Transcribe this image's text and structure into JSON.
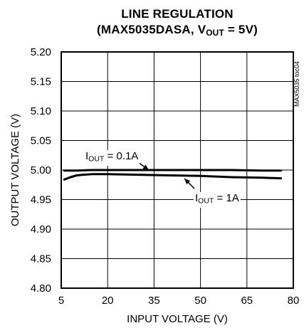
{
  "chart_data": {
    "type": "line",
    "title": "LINE REGULATION",
    "subtitle_parts": {
      "prefix": "(MAX5035DASA, V",
      "sub": "OUT",
      "suffix": " = 5V)"
    },
    "xlabel": "INPUT VOLTAGE (V)",
    "ylabel": "OUTPUT VOLTAGE (V)",
    "xlim": [
      5,
      80
    ],
    "ylim": [
      4.8,
      5.2
    ],
    "x_ticks": [
      "5",
      "20",
      "35",
      "50",
      "65",
      "80"
    ],
    "y_ticks": [
      "5.20",
      "5.15",
      "5.10",
      "5.05",
      "5.00",
      "4.95",
      "4.90",
      "4.85",
      "4.80"
    ],
    "grid": true,
    "side_label": "MAX5035 toc04",
    "series": [
      {
        "name": "IOUT = 0.1A",
        "label_parts": {
          "prefix": "I",
          "sub": "OUT",
          "suffix": " = 0.1A"
        },
        "x": [
          6,
          10,
          15,
          20,
          30,
          40,
          50,
          60,
          70,
          76
        ],
        "y": [
          4.999,
          4.999,
          5.0,
          5.0,
          5.0,
          5.0,
          5.0,
          5.0,
          4.999,
          4.999
        ]
      },
      {
        "name": "IOUT = 1A",
        "label_parts": {
          "prefix": "I",
          "sub": "OUT",
          "suffix": " = 1A"
        },
        "x": [
          6,
          8,
          10,
          12,
          15,
          20,
          30,
          40,
          50,
          60,
          70,
          76
        ],
        "y": [
          4.984,
          4.988,
          4.991,
          4.992,
          4.993,
          4.993,
          4.992,
          4.991,
          4.99,
          4.988,
          4.987,
          4.986
        ]
      }
    ]
  }
}
